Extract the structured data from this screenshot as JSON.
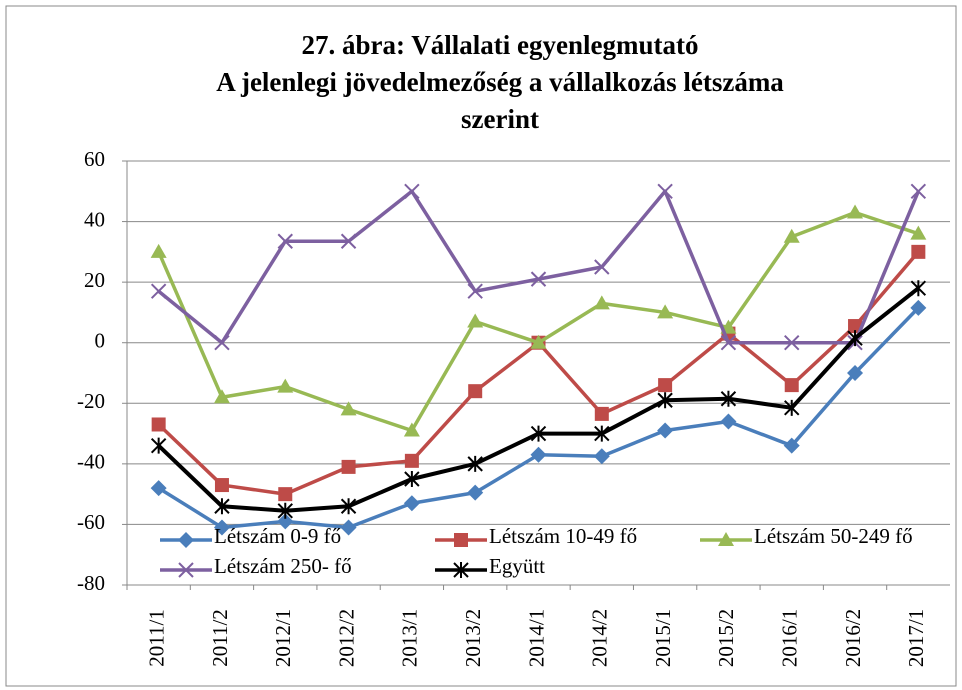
{
  "chart_data": {
    "type": "line",
    "title": [
      "27. ábra: Vállalati egyenlegmutató",
      "A jelenlegi jövedelmezőség a vállalkozás létszáma",
      "szerint"
    ],
    "categories": [
      "2011/1",
      "2011/2",
      "2012/1",
      "2012/2",
      "2013/1",
      "2013/2",
      "2014/1",
      "2014/2",
      "2015/1",
      "2015/2",
      "2016/1",
      "2016/2",
      "2017/1"
    ],
    "series": [
      {
        "name": "Létszám 0-9 fő",
        "color": "#4a7ebb",
        "marker": "diamond",
        "values": [
          -48,
          -61,
          -59,
          -61,
          -53,
          -49.5,
          -37,
          -37.5,
          -29,
          -26,
          -34,
          -10,
          11.5
        ]
      },
      {
        "name": "Létszám 10-49 fő",
        "color": "#be4b48",
        "marker": "square",
        "values": [
          -27,
          -47,
          -50,
          -41,
          -39,
          -16,
          0,
          -23.5,
          -14,
          3,
          -14,
          5.5,
          30
        ]
      },
      {
        "name": "Létszám 50-249 fő",
        "color": "#98b954",
        "marker": "triangle",
        "values": [
          30,
          -18,
          -14.5,
          -22,
          -29,
          7,
          0,
          13,
          10,
          5,
          35,
          43,
          36
        ]
      },
      {
        "name": "Létszám 250- fő",
        "color": "#7d60a0",
        "marker": "x",
        "values": [
          17,
          0,
          33.5,
          33.5,
          50,
          17,
          21,
          25,
          50,
          0,
          0,
          0,
          50
        ]
      },
      {
        "name": "Együtt",
        "color": "#000000",
        "marker": "star",
        "values": [
          -34,
          -54,
          -55.5,
          -54,
          -45,
          -40,
          -30,
          -30,
          -19,
          -18.5,
          -21.5,
          1.5,
          18
        ]
      }
    ],
    "ylim": [
      -80,
      60
    ],
    "yticks": [
      -80,
      -60,
      -40,
      -20,
      0,
      20,
      40,
      60
    ],
    "grid": true
  }
}
